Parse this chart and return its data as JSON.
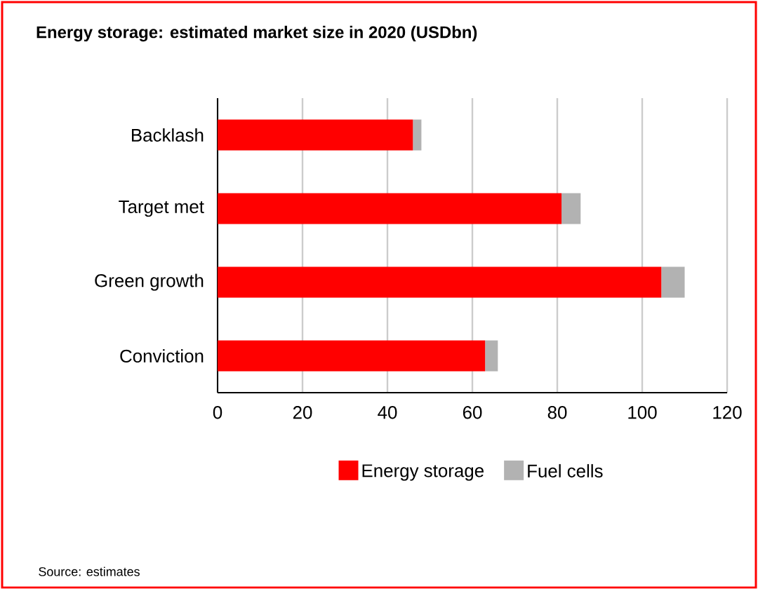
{
  "chart_data": {
    "type": "bar",
    "title": "Energy storage: estimated market size in 2020 (USDbn)",
    "categories": [
      "Backlash",
      "Target met",
      "Green growth",
      "Conviction"
    ],
    "series": [
      {
        "name": "Energy storage",
        "color": "#ff0000",
        "values": [
          46,
          81,
          104.5,
          63
        ]
      },
      {
        "name": "Fuel cells",
        "color": "#b2b2b2",
        "values": [
          2,
          4.5,
          5.5,
          3
        ]
      }
    ],
    "orientation": "horizontal",
    "stacked": true,
    "xlim": [
      0,
      120
    ],
    "xticks": [
      0,
      20,
      40,
      60,
      80,
      100,
      120
    ],
    "grid": "x",
    "legend": "bottom",
    "annotations": [
      "Source: estimates"
    ]
  }
}
